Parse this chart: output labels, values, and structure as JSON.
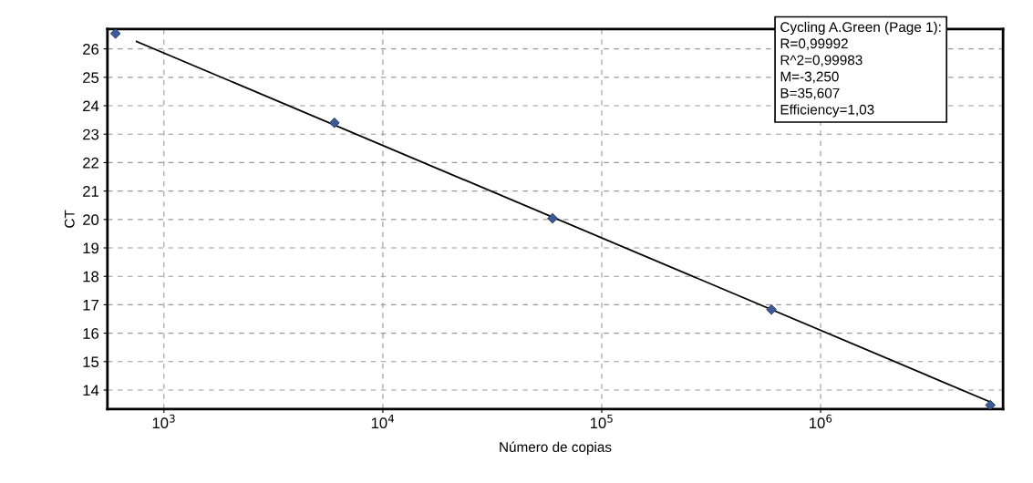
{
  "chart_data": {
    "type": "scatter",
    "xlabel": "Número de copias",
    "ylabel": "CT",
    "log": "x",
    "series": [
      {
        "color": "#3b5a96",
        "marker": "diamond",
        "x": [
          601,
          6010,
          59600,
          596000,
          5960000
        ],
        "values": [
          26.54,
          23.4,
          20.04,
          16.83,
          13.47
        ]
      },
      {
        "type": "line",
        "color": "#000000",
        "marker": "none",
        "line_style": "solid",
        "x": [
          750,
          5960000
        ],
        "values": [
          26.26,
          13.58
        ]
      }
    ],
    "xlim": [
      552,
      6810000
    ],
    "ylim": [
      13.33,
      26.7
    ],
    "xticks": [
      {
        "value": 1000,
        "label": "10$^{3}$"
      },
      {
        "value": 10000,
        "label": "10$^{4}$"
      },
      {
        "value": 100000,
        "label": "10$^{5}$"
      },
      {
        "value": 1000000,
        "label": "10$^{6}$"
      }
    ],
    "yticks": [
      14,
      15,
      16,
      17,
      18,
      19,
      20,
      21,
      22,
      23,
      24,
      25,
      26
    ],
    "grid": true,
    "legend": false,
    "annotations": [
      "Cycling A.Green (Page 1):",
      "R=0,99992",
      "R^2=0,99983",
      "M=-3,250",
      "B=35,607",
      "Efficiency=1,03"
    ]
  }
}
